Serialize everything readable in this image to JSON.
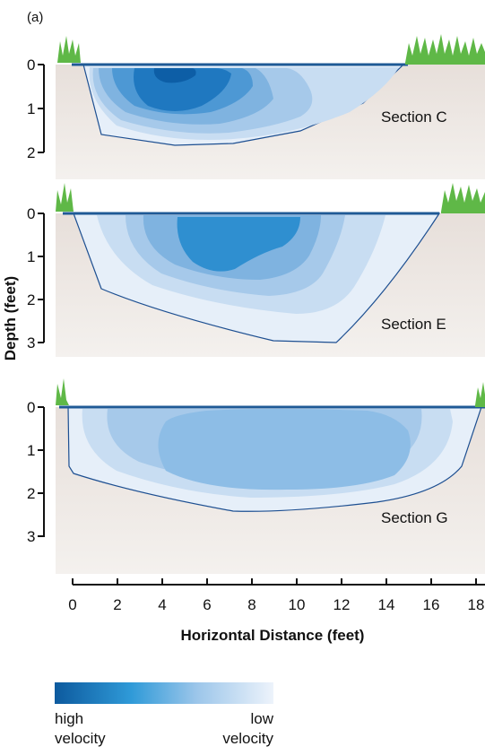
{
  "panel_label": "(a)",
  "y_axis_title": "Depth (feet)",
  "x_axis_title": "Horizontal Distance (feet)",
  "x_ticks": [
    "0",
    "2",
    "4",
    "6",
    "8",
    "10",
    "12",
    "14",
    "16",
    "18"
  ],
  "sections": [
    {
      "name": "Section C",
      "depth_ticks": [
        "0",
        "1",
        "2"
      ]
    },
    {
      "name": "Section E",
      "depth_ticks": [
        "0",
        "1",
        "2",
        "3"
      ]
    },
    {
      "name": "Section G",
      "depth_ticks": [
        "0",
        "1",
        "2",
        "3"
      ]
    }
  ],
  "legend": {
    "left_label_1": "high",
    "left_label_2": "velocity",
    "right_label_1": "low",
    "right_label_2": "velocity",
    "color_high": "#0d5a9e",
    "color_mid": "#2f9ad8",
    "color_low": "#e9f1fa"
  },
  "colors": {
    "ground": "#ece6e2",
    "channel_outline": "#1d4f91",
    "water_surface": "#1f5a96",
    "grass": "#5fb847",
    "velocity_levels": [
      "#e6eff9",
      "#c8ddf2",
      "#a6c9ea",
      "#7fb3e0",
      "#4d98d4",
      "#1f78c0",
      "#0d5ea6"
    ]
  }
}
